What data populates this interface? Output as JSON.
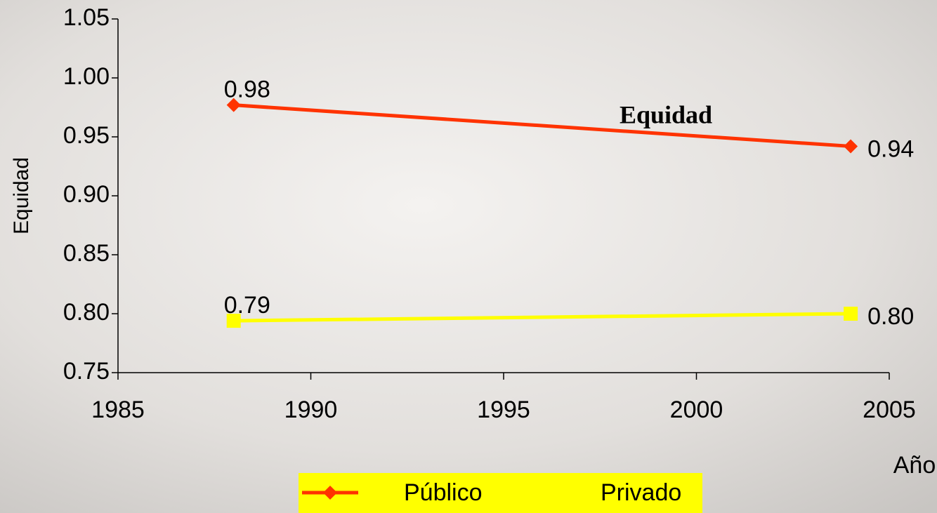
{
  "chart_data": {
    "type": "line",
    "annotation": "Equidad",
    "y_label": "Equidad",
    "x_label": "Año",
    "x": [
      1988,
      2004
    ],
    "series": [
      {
        "name": "Público",
        "color": "#ff3300",
        "marker": "diamond",
        "values": [
          0.977,
          0.942
        ],
        "value_labels": [
          "0.98",
          "0.94"
        ]
      },
      {
        "name": "Privado",
        "color": "#ffff00",
        "marker": "square",
        "values": [
          0.794,
          0.8
        ],
        "value_labels": [
          "0.79",
          "0.80"
        ]
      }
    ],
    "xlim": [
      1985,
      2005
    ],
    "xticks": [
      1985,
      1990,
      1995,
      2000,
      2005
    ],
    "ylim": [
      0.75,
      1.05
    ],
    "yticks": [
      0.75,
      {
        "value": 0.8,
        "label": "0.80"
      },
      0.85,
      {
        "value": 0.9,
        "label": "0.90"
      },
      0.95,
      {
        "value": 1,
        "label": "1.00"
      },
      1.05
    ],
    "legend": "bottom",
    "grid": false
  }
}
